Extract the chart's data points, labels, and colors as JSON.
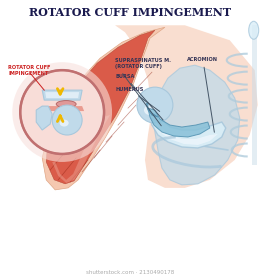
{
  "title": "ROTATOR CUFF IMPINGEMENT",
  "title_color": "#1a1a4e",
  "title_fontsize": 8.0,
  "bg_color": "#ffffff",
  "watermark": "shutterstock.com · 2130490178",
  "labels": {
    "supraspinatus": "SUPRASPINATUS M.\n(ROTATOR CUFF)",
    "bursa": "BURSA",
    "humerus": "HUMERUS",
    "acromion": "ACROMION",
    "rotator_cuff": "ROTATOR CUFF\nIMPINGEMENT"
  },
  "colors": {
    "muscle_red": "#d44030",
    "muscle_mid": "#e07060",
    "muscle_light": "#eaa090",
    "skin_bg": "#f5cdb8",
    "bone_blue": "#a8c8dc",
    "bone_mid": "#c0daea",
    "bone_light": "#daeef8",
    "bone_white": "#eef6fc",
    "circle_fill": "#f8ddd8",
    "circle_edge": "#d09090",
    "arrow_yellow": "#f0b800",
    "line_dark": "#444466",
    "rib_blue": "#b0ccdc",
    "text_dark": "#333355",
    "spine_blue": "#c8dce8"
  }
}
